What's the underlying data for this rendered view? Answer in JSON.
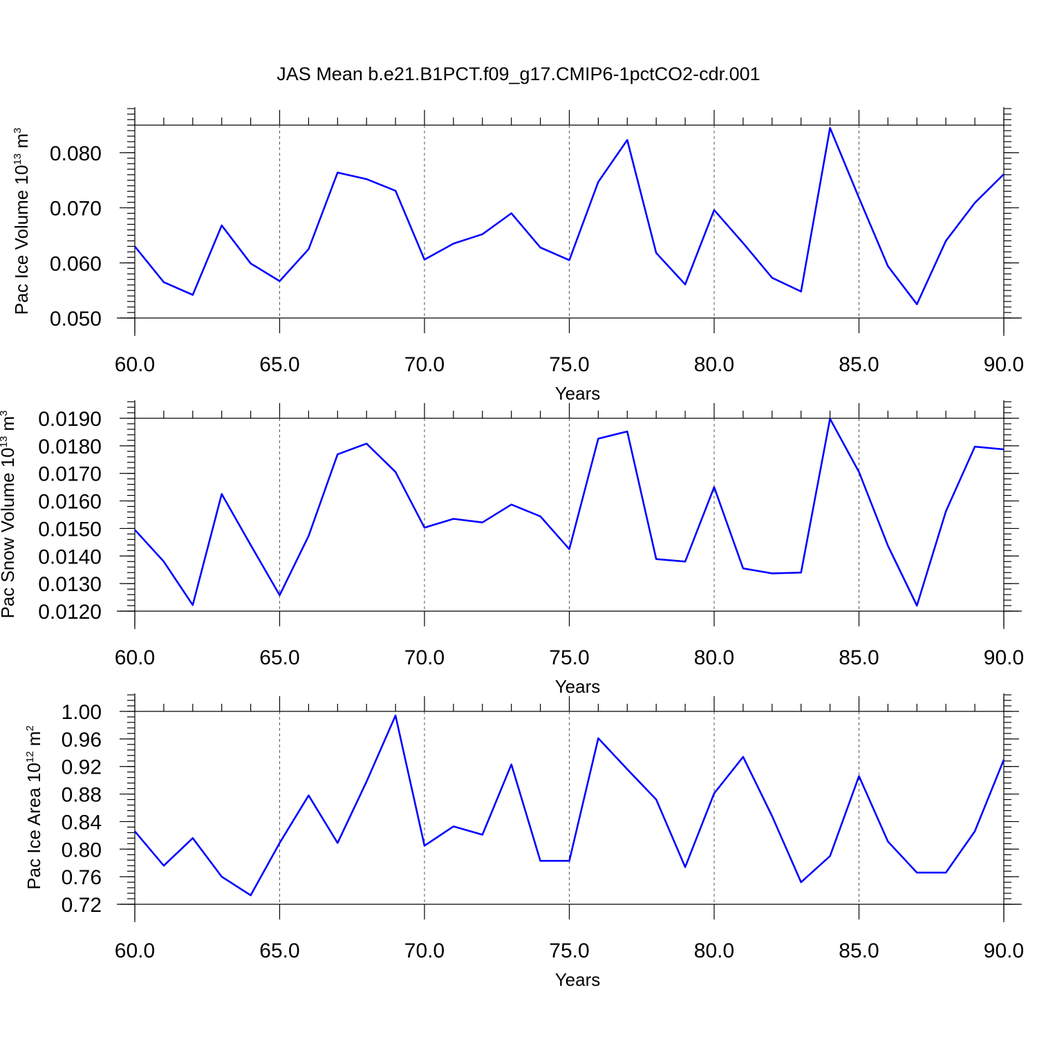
{
  "title": "JAS Mean b.e21.B1PCT.f09_g17.CMIP6-1pctCO2-cdr.001",
  "chart_data": [
    {
      "type": "line",
      "ylabel": {
        "text": "Pac Ice Volume 10",
        "sup": "13",
        "unit": " m",
        "unit_sup": "3"
      },
      "xlabel": "Years",
      "xlim": [
        60,
        90
      ],
      "ylim": [
        0.05,
        0.085
      ],
      "xticks": [
        60,
        65,
        70,
        75,
        80,
        85,
        90
      ],
      "xtick_labels": [
        "60.0",
        "65.0",
        "70.0",
        "75.0",
        "80.0",
        "85.0",
        "90.0"
      ],
      "yticks": [
        0.05,
        0.06,
        0.07,
        0.08
      ],
      "ytick_labels": [
        "0.050",
        "0.060",
        "0.070",
        "0.080"
      ],
      "ymajor_step": 0.005,
      "yminor_step": 0.001,
      "grid": "dashed vertical at major x ticks",
      "line_color": "#0000ff",
      "series": [
        {
          "x": [
            60,
            61,
            62,
            63,
            64,
            65,
            66,
            67,
            68,
            69,
            70,
            71,
            72,
            73,
            74,
            75,
            76,
            77,
            78,
            79,
            80,
            81,
            82,
            83,
            84,
            85,
            86,
            87,
            88,
            89,
            90
          ],
          "values": [
            0.063,
            0.0565,
            0.0542,
            0.0668,
            0.0599,
            0.0567,
            0.0625,
            0.0764,
            0.0752,
            0.0731,
            0.0606,
            0.0635,
            0.0652,
            0.069,
            0.0628,
            0.0605,
            0.0747,
            0.0823,
            0.0618,
            0.0561,
            0.0696,
            0.0636,
            0.0573,
            0.0548,
            0.0845,
            0.0718,
            0.0594,
            0.0525,
            0.064,
            0.0709,
            0.0761
          ]
        }
      ]
    },
    {
      "type": "line",
      "ylabel": {
        "text": "Pac Snow Volume 10",
        "sup": "13",
        "unit": " m",
        "unit_sup": "3"
      },
      "xlabel": "Years",
      "xlim": [
        60,
        90
      ],
      "ylim": [
        0.012,
        0.019
      ],
      "xticks": [
        60,
        65,
        70,
        75,
        80,
        85,
        90
      ],
      "xtick_labels": [
        "60.0",
        "65.0",
        "70.0",
        "75.0",
        "80.0",
        "85.0",
        "90.0"
      ],
      "yticks": [
        0.012,
        0.013,
        0.014,
        0.015,
        0.016,
        0.017,
        0.018,
        0.019
      ],
      "ytick_labels": [
        "0.0120",
        "0.0130",
        "0.0140",
        "0.0150",
        "0.0160",
        "0.0170",
        "0.0180",
        "0.0190"
      ],
      "ymajor_step": 0.001,
      "yminor_step": 0.0002,
      "grid": "dashed vertical at major x ticks",
      "line_color": "#0000ff",
      "series": [
        {
          "x": [
            60,
            61,
            62,
            63,
            64,
            65,
            66,
            67,
            68,
            69,
            70,
            71,
            72,
            73,
            74,
            75,
            76,
            77,
            78,
            79,
            80,
            81,
            82,
            83,
            84,
            85,
            86,
            87,
            88,
            89,
            90
          ],
          "values": [
            0.01495,
            0.0138,
            0.01222,
            0.01625,
            0.0144,
            0.01258,
            0.01473,
            0.01769,
            0.01808,
            0.01705,
            0.01503,
            0.01535,
            0.01522,
            0.01587,
            0.01544,
            0.01425,
            0.01826,
            0.01852,
            0.01389,
            0.0138,
            0.0165,
            0.01355,
            0.01337,
            0.0134,
            0.01898,
            0.01705,
            0.01437,
            0.0122,
            0.01562,
            0.01797,
            0.01787
          ]
        }
      ]
    },
    {
      "type": "line",
      "ylabel": {
        "text": "Pac Ice Area 10",
        "sup": "12",
        "unit": " m",
        "unit_sup": "2"
      },
      "xlabel": "Years",
      "xlim": [
        60,
        90
      ],
      "ylim": [
        0.72,
        1.0
      ],
      "xticks": [
        60,
        65,
        70,
        75,
        80,
        85,
        90
      ],
      "xtick_labels": [
        "60.0",
        "65.0",
        "70.0",
        "75.0",
        "80.0",
        "85.0",
        "90.0"
      ],
      "yticks": [
        0.72,
        0.76,
        0.8,
        0.84,
        0.88,
        0.92,
        0.96,
        1.0
      ],
      "ytick_labels": [
        "0.72",
        "0.76",
        "0.80",
        "0.84",
        "0.88",
        "0.92",
        "0.96",
        "1.00"
      ],
      "ymajor_step": 0.04,
      "yminor_step": 0.008,
      "grid": "dashed vertical at major x ticks",
      "line_color": "#0000ff",
      "series": [
        {
          "x": [
            60,
            61,
            62,
            63,
            64,
            65,
            66,
            67,
            68,
            69,
            70,
            71,
            72,
            73,
            74,
            75,
            76,
            77,
            78,
            79,
            80,
            81,
            82,
            83,
            84,
            85,
            86,
            87,
            88,
            89,
            90
          ],
          "values": [
            0.826,
            0.776,
            0.816,
            0.76,
            0.733,
            0.809,
            0.878,
            0.809,
            0.898,
            0.994,
            0.805,
            0.833,
            0.821,
            0.923,
            0.783,
            0.783,
            0.961,
            0.916,
            0.872,
            0.774,
            0.881,
            0.934,
            0.848,
            0.752,
            0.79,
            0.906,
            0.811,
            0.766,
            0.766,
            0.826,
            0.93
          ]
        }
      ]
    }
  ]
}
